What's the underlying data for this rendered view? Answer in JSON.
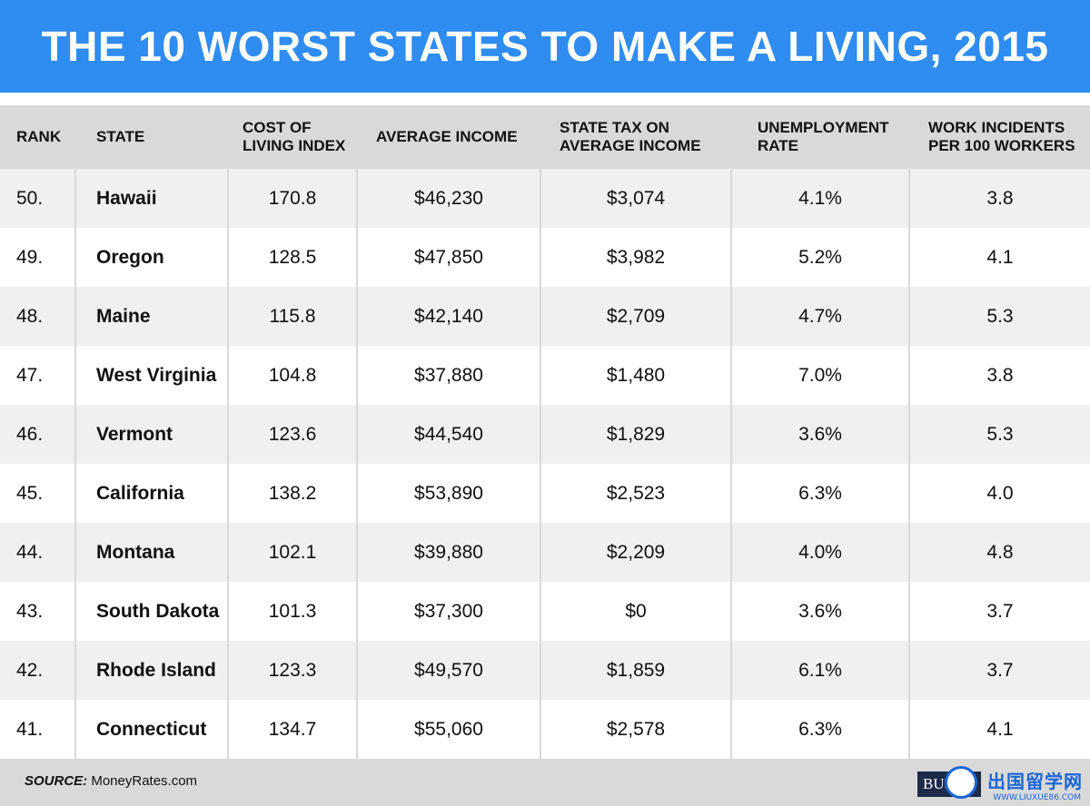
{
  "title": "THE 10 WORST STATES TO MAKE A LIVING, 2015",
  "source_label": "SOURCE:",
  "source_value": "MoneyRates.com",
  "logo_text": "BUS",
  "watermark_text": "出国留学网",
  "watermark_url": "WWW.LIUXUE86.COM",
  "colors": {
    "title_bg": "#2f8cf0",
    "header_bg": "#d9d9d9",
    "row_odd": "#f0f0f0",
    "row_even": "#ffffff"
  },
  "chart_data": {
    "type": "table",
    "title": "THE 10 WORST STATES TO MAKE A LIVING, 2015",
    "columns": [
      [
        "RANK"
      ],
      [
        "STATE"
      ],
      [
        "COST OF",
        "LIVING INDEX"
      ],
      [
        "AVERAGE INCOME"
      ],
      [
        "STATE TAX ON",
        "AVERAGE INCOME"
      ],
      [
        "UNEMPLOYMENT",
        "RATE"
      ],
      [
        "WORK INCIDENTS",
        "PER 100 WORKERS"
      ]
    ],
    "rows": [
      [
        "50.",
        "Hawaii",
        "170.8",
        "$46,230",
        "$3,074",
        "4.1%",
        "3.8"
      ],
      [
        "49.",
        "Oregon",
        "128.5",
        "$47,850",
        "$3,982",
        "5.2%",
        "4.1"
      ],
      [
        "48.",
        "Maine",
        "115.8",
        "$42,140",
        "$2,709",
        "4.7%",
        "5.3"
      ],
      [
        "47.",
        "West Virginia",
        "104.8",
        "$37,880",
        "$1,480",
        "7.0%",
        "3.8"
      ],
      [
        "46.",
        "Vermont",
        "123.6",
        "$44,540",
        "$1,829",
        "3.6%",
        "5.3"
      ],
      [
        "45.",
        "California",
        "138.2",
        "$53,890",
        "$2,523",
        "6.3%",
        "4.0"
      ],
      [
        "44.",
        "Montana",
        "102.1",
        "$39,880",
        "$2,209",
        "4.0%",
        "4.8"
      ],
      [
        "43.",
        "South Dakota",
        "101.3",
        "$37,300",
        "$0",
        "3.6%",
        "3.7"
      ],
      [
        "42.",
        "Rhode Island",
        "123.3",
        "$49,570",
        "$1,859",
        "6.1%",
        "3.7"
      ],
      [
        "41.",
        "Connecticut",
        "134.7",
        "$55,060",
        "$2,578",
        "6.3%",
        "4.1"
      ]
    ]
  }
}
